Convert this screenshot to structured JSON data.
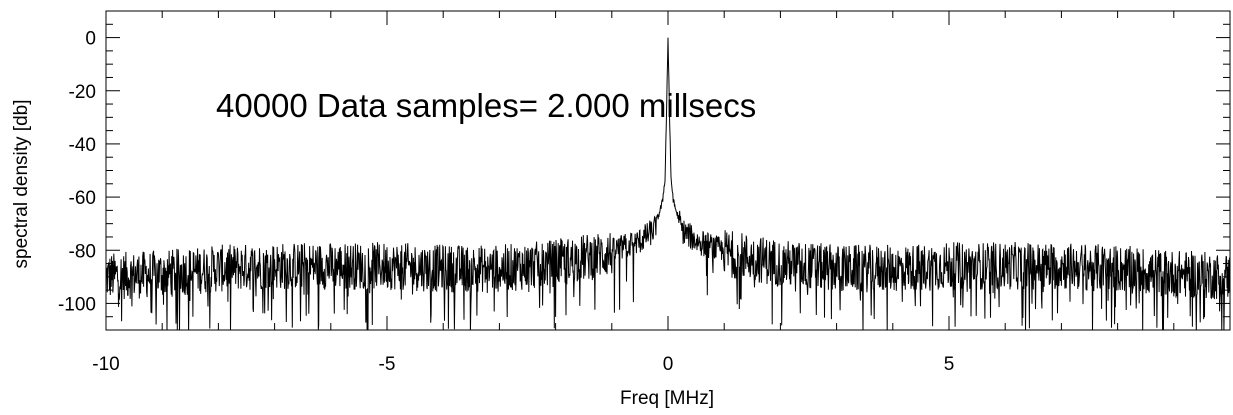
{
  "chart_data": {
    "type": "line",
    "title": "",
    "xlabel": "Freq [MHz]",
    "ylabel": "spectral density [db]",
    "xlim": [
      -10,
      10
    ],
    "ylim": [
      -110,
      10
    ],
    "x_major_ticks": [
      -10,
      -5,
      0,
      5
    ],
    "x_tick_labels": [
      "-10",
      "-5",
      "0",
      "5"
    ],
    "y_major_ticks": [
      0,
      -20,
      -40,
      -60,
      -80,
      -100
    ],
    "y_tick_labels": [
      "0",
      "-20",
      "-40",
      "-60",
      "-80",
      "-100"
    ],
    "grid": false,
    "legend": "none",
    "line_color": "#000000",
    "annotation": "40000 Data samples= 2.000 millsecs",
    "samples": 40000,
    "duration": "2.000 millsecs",
    "series": [
      {
        "x": [
          -10,
          -9,
          -8,
          -7,
          -6,
          -5,
          -4,
          -3,
          -2,
          -1.5,
          -1,
          -0.5,
          -0.25,
          -0.1,
          -0.05,
          0,
          0.05,
          0.1,
          0.25,
          0.5,
          1,
          1.5,
          2,
          3,
          4,
          5,
          6,
          7,
          8,
          9,
          10
        ],
        "y": [
          -89,
          -88,
          -86,
          -85,
          -85,
          -85,
          -86,
          -86,
          -84,
          -82,
          -80,
          -76,
          -72,
          -62,
          -52,
          0,
          -52,
          -62,
          -72,
          -76,
          -80,
          -82,
          -84,
          -86,
          -86,
          -85,
          -85,
          -85,
          -86,
          -88,
          -89
        ]
      }
    ]
  }
}
